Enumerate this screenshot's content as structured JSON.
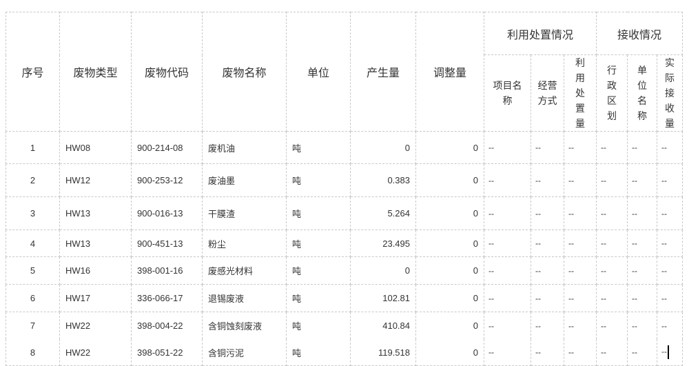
{
  "headers": {
    "seq": "序号",
    "type": "废物类型",
    "code": "废物代码",
    "name": "废物名称",
    "unit": "单位",
    "produced": "产生量",
    "adjusted": "调整量",
    "group_disposal": "利用处置情况",
    "group_receive": "接收情况",
    "project_name": "项目名称",
    "operation_mode": "经营方式",
    "disposal_amount": "利用处置量",
    "region": "行政区划",
    "unit_name": "单位名称",
    "received_amount": "实际接收量"
  },
  "rows": [
    {
      "seq": "1",
      "type": "HW08",
      "code": "900-214-08",
      "name": "废机油",
      "unit": "吨",
      "produced": "0",
      "adjusted": "0",
      "rest": [
        "--",
        "--",
        "--",
        "--",
        "--",
        "--"
      ]
    },
    {
      "seq": "2",
      "type": "HW12",
      "code": "900-253-12",
      "name": "废油墨",
      "unit": "吨",
      "produced": "0.383",
      "adjusted": "0",
      "rest": [
        "--",
        "--",
        "--",
        "--",
        "--",
        "--"
      ]
    },
    {
      "seq": "3",
      "type": "HW13",
      "code": "900-016-13",
      "name": "干膜渣",
      "unit": "吨",
      "produced": "5.264",
      "adjusted": "0",
      "rest": [
        "--",
        "--",
        "--",
        "--",
        "--",
        "--"
      ]
    },
    {
      "seq": "4",
      "type": "HW13",
      "code": "900-451-13",
      "name": "粉尘",
      "unit": "吨",
      "produced": "23.495",
      "adjusted": "0",
      "rest": [
        "--",
        "--",
        "--",
        "--",
        "--",
        "--"
      ]
    },
    {
      "seq": "5",
      "type": "HW16",
      "code": "398-001-16",
      "name": "废感光材料",
      "unit": "吨",
      "produced": "0",
      "adjusted": "0",
      "rest": [
        "--",
        "--",
        "--",
        "--",
        "--",
        "--"
      ]
    },
    {
      "seq": "6",
      "type": "HW17",
      "code": "336-066-17",
      "name": "退锡废液",
      "unit": "吨",
      "produced": "102.81",
      "adjusted": "0",
      "rest": [
        "--",
        "--",
        "--",
        "--",
        "--",
        "--"
      ]
    },
    {
      "seq": "7",
      "type": "HW22",
      "code": "398-004-22",
      "name": "含铜蚀刻废液",
      "unit": "吨",
      "produced": "410.84",
      "adjusted": "0",
      "rest": [
        "--",
        "--",
        "--",
        "--",
        "--",
        "--"
      ]
    },
    {
      "seq": "8",
      "type": "HW22",
      "code": "398-051-22",
      "name": "含铜污泥",
      "unit": "吨",
      "produced": "119.518",
      "adjusted": "0",
      "rest": [
        "--",
        "--",
        "--",
        "--",
        "--",
        "--"
      ]
    }
  ]
}
